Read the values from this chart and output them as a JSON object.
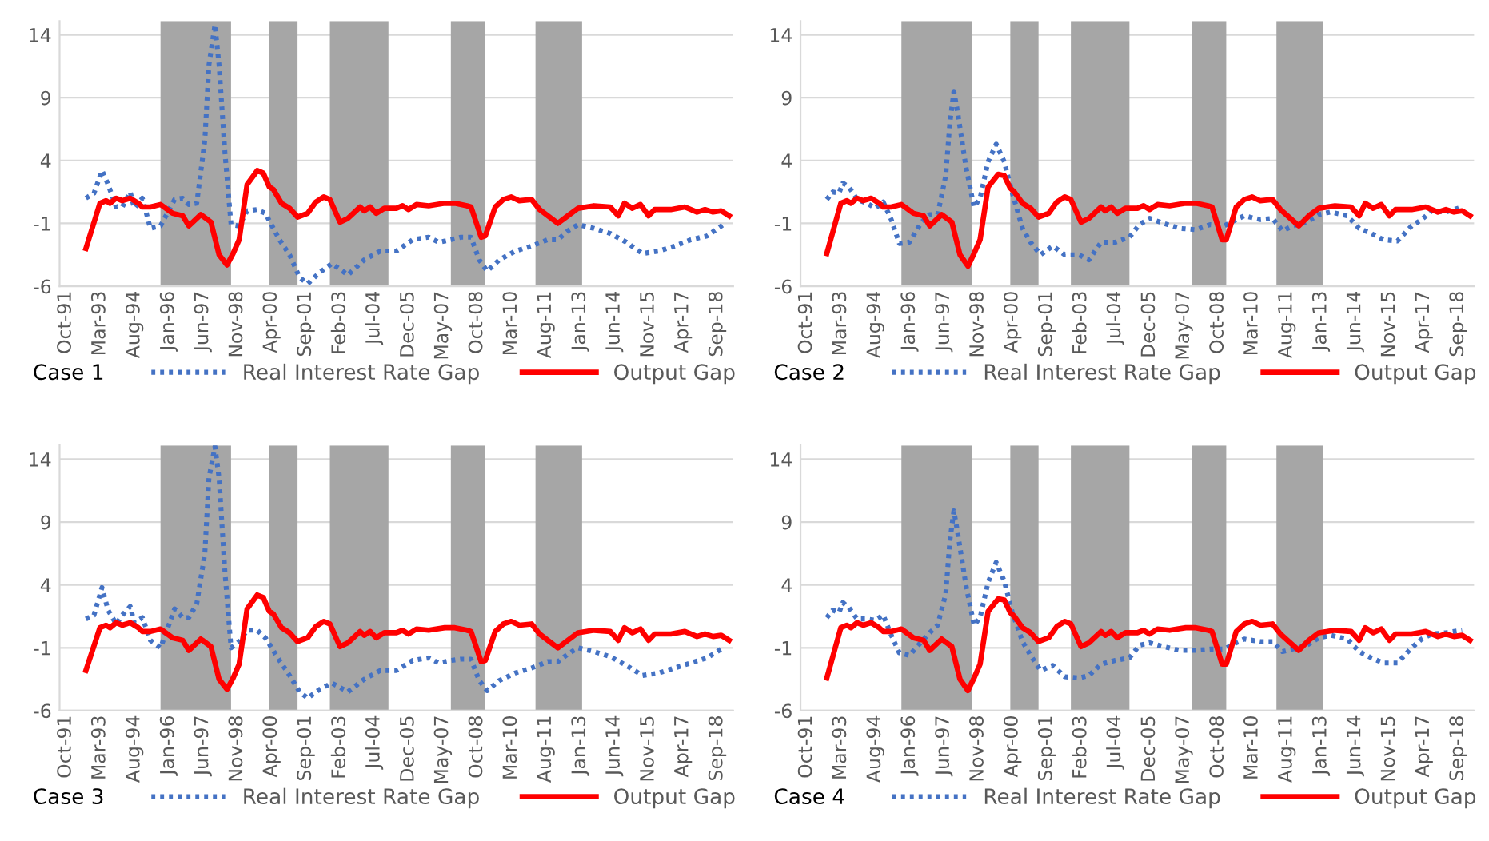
{
  "chart_data": [
    {
      "type": "line",
      "title": "Case 1",
      "ylim": [
        -6,
        15.1
      ],
      "yticks": [
        -6,
        -1,
        4,
        9,
        14
      ],
      "xlim": [
        "1991-07",
        "2019-05"
      ],
      "xticks": [
        {
          "value": "1991-10",
          "label": "Oct-91"
        },
        {
          "value": "1993-03",
          "label": "Mar-93"
        },
        {
          "value": "1994-08",
          "label": "Aug-94"
        },
        {
          "value": "1996-01",
          "label": "Jan-96"
        },
        {
          "value": "1997-06",
          "label": "Jun-97"
        },
        {
          "value": "1998-11",
          "label": "Nov-98"
        },
        {
          "value": "2000-04",
          "label": "Apr-00"
        },
        {
          "value": "2001-09",
          "label": "Sep-01"
        },
        {
          "value": "2003-02",
          "label": "Feb-03"
        },
        {
          "value": "2004-07",
          "label": "Jul-04"
        },
        {
          "value": "2005-12",
          "label": "Dec-05"
        },
        {
          "value": "2007-05",
          "label": "May-07"
        },
        {
          "value": "2008-10",
          "label": "Oct-08"
        },
        {
          "value": "2010-03",
          "label": "Mar-10"
        },
        {
          "value": "2011-08",
          "label": "Aug-11"
        },
        {
          "value": "2013-01",
          "label": "Jan-13"
        },
        {
          "value": "2014-06",
          "label": "Jun-14"
        },
        {
          "value": "2015-11",
          "label": "Nov-15"
        },
        {
          "value": "2017-04",
          "label": "Apr-17"
        },
        {
          "value": "2018-09",
          "label": "Sep-18"
        }
      ],
      "grid": "y",
      "legend": "bottom",
      "bands": [
        {
          "axis": "x",
          "from": "1995-09",
          "to": "1998-08",
          "color": "#a6a6a6"
        },
        {
          "axis": "x",
          "from": "2000-03",
          "to": "2001-05",
          "color": "#a6a6a6"
        },
        {
          "axis": "x",
          "from": "2002-09",
          "to": "2005-02",
          "color": "#a6a6a6"
        },
        {
          "axis": "x",
          "from": "2007-09",
          "to": "2009-02",
          "color": "#a6a6a6"
        },
        {
          "axis": "x",
          "from": "2011-03",
          "to": "2013-02",
          "color": "#a6a6a6"
        }
      ],
      "series": [
        {
          "name": "Real Interest Rate Gap",
          "type": "line",
          "color": "#4472c4",
          "line_style": "dotted",
          "x": [
            "1992-08",
            "1992-12",
            "1993-04",
            "1993-07",
            "1993-11",
            "1994-02",
            "1994-06",
            "1994-08",
            "1994-12",
            "1995-04",
            "1995-09",
            "1996-04",
            "1996-08",
            "1996-11",
            "1997-03",
            "1997-07",
            "1997-09",
            "1997-12",
            "1998-02",
            "1998-05",
            "1998-08",
            "1998-12",
            "1999-04",
            "1999-09",
            "2000-01",
            "2000-08",
            "2001-01",
            "2001-06",
            "2001-10",
            "2002-04",
            "2002-10",
            "2003-06",
            "2004-02",
            "2004-10",
            "2005-06",
            "2006-02",
            "2006-10",
            "2007-03",
            "2007-09",
            "2008-02",
            "2008-07",
            "2008-11",
            "2009-03",
            "2009-09",
            "2010-05",
            "2011-01",
            "2011-09",
            "2012-02",
            "2012-07",
            "2012-12",
            "2013-08",
            "2014-04",
            "2014-12",
            "2015-08",
            "2016-04",
            "2016-12",
            "2017-08",
            "2018-04",
            "2018-12"
          ],
          "values": [
            1.0,
            1.4,
            3.2,
            2.1,
            0.3,
            0.3,
            1.5,
            0.2,
            1.0,
            -1.4,
            -1.2,
            0.9,
            1.0,
            0.5,
            0.6,
            5.6,
            11.6,
            14.8,
            11.6,
            4.6,
            -1.1,
            -1.2,
            0.0,
            0.1,
            -0.2,
            -2.3,
            -3.5,
            -5.3,
            -5.8,
            -4.9,
            -4.2,
            -5.1,
            -3.9,
            -3.2,
            -3.2,
            -2.3,
            -2.1,
            -2.5,
            -2.3,
            -2.1,
            -2.1,
            -3.9,
            -4.8,
            -3.9,
            -3.2,
            -2.8,
            -2.3,
            -2.3,
            -1.6,
            -1.1,
            -1.4,
            -1.8,
            -2.5,
            -3.4,
            -3.2,
            -2.8,
            -2.3,
            -2.0,
            -1.1
          ]
        },
        {
          "name": "Output Gap",
          "type": "line",
          "color": "#ff0000",
          "line_style": "solid",
          "x": [
            "1992-08",
            "1993-03",
            "1993-06",
            "1993-08",
            "1993-11",
            "1994-02",
            "1994-06",
            "1994-10",
            "1994-12",
            "1995-04",
            "1995-09",
            "1996-03",
            "1996-08",
            "1996-11",
            "1997-05",
            "1997-10",
            "1998-02",
            "1998-06",
            "1998-09",
            "1998-12",
            "1999-04",
            "1999-09",
            "1999-12",
            "2000-03",
            "2000-05",
            "2000-09",
            "2001-01",
            "2001-05",
            "2001-10",
            "2002-02",
            "2002-06",
            "2002-09",
            "2003-02",
            "2003-06",
            "2003-12",
            "2004-02",
            "2004-05",
            "2004-08",
            "2004-12",
            "2005-06",
            "2005-09",
            "2005-12",
            "2006-04",
            "2006-10",
            "2007-06",
            "2007-11",
            "2008-05",
            "2008-07",
            "2008-12",
            "2009-02",
            "2009-07",
            "2009-11",
            "2010-03",
            "2010-07",
            "2011-01",
            "2011-05",
            "2012-02",
            "2012-07",
            "2012-12",
            "2013-08",
            "2014-04",
            "2014-08",
            "2014-11",
            "2015-03",
            "2015-07",
            "2015-11",
            "2016-02",
            "2016-10",
            "2017-05",
            "2017-11",
            "2018-03",
            "2018-07",
            "2018-11",
            "2019-03"
          ],
          "values": [
            -3.0,
            0.6,
            0.8,
            0.6,
            1.0,
            0.8,
            1.0,
            0.6,
            0.3,
            0.3,
            0.5,
            -0.2,
            -0.4,
            -1.2,
            -0.3,
            -0.9,
            -3.5,
            -4.3,
            -3.4,
            -2.3,
            2.1,
            3.2,
            3.0,
            1.9,
            1.7,
            0.6,
            0.2,
            -0.5,
            -0.2,
            0.7,
            1.1,
            0.9,
            -0.9,
            -0.6,
            0.3,
            0.0,
            0.3,
            -0.2,
            0.2,
            0.2,
            0.4,
            0.1,
            0.5,
            0.4,
            0.6,
            0.6,
            0.4,
            0.3,
            -2.1,
            -2.0,
            0.3,
            0.9,
            1.1,
            0.8,
            0.9,
            0.1,
            -1.0,
            -0.4,
            0.2,
            0.4,
            0.3,
            -0.4,
            0.6,
            0.2,
            0.5,
            -0.4,
            0.1,
            0.1,
            0.3,
            -0.1,
            0.1,
            -0.1,
            0.0,
            -0.4
          ]
        }
      ]
    },
    {
      "type": "line",
      "title": "Case 2",
      "ylim": [
        -6,
        15.1
      ],
      "yticks": [
        -6,
        -1,
        4,
        9,
        14
      ],
      "xlim": [
        "1991-07",
        "2019-05"
      ],
      "xticks": [
        {
          "value": "1991-10",
          "label": "Oct-91"
        },
        {
          "value": "1993-03",
          "label": "Mar-93"
        },
        {
          "value": "1994-08",
          "label": "Aug-94"
        },
        {
          "value": "1996-01",
          "label": "Jan-96"
        },
        {
          "value": "1997-06",
          "label": "Jun-97"
        },
        {
          "value": "1998-11",
          "label": "Nov-98"
        },
        {
          "value": "2000-04",
          "label": "Apr-00"
        },
        {
          "value": "2001-09",
          "label": "Sep-01"
        },
        {
          "value": "2003-02",
          "label": "Feb-03"
        },
        {
          "value": "2004-07",
          "label": "Jul-04"
        },
        {
          "value": "2005-12",
          "label": "Dec-05"
        },
        {
          "value": "2007-05",
          "label": "May-07"
        },
        {
          "value": "2008-10",
          "label": "Oct-08"
        },
        {
          "value": "2010-03",
          "label": "Mar-10"
        },
        {
          "value": "2011-08",
          "label": "Aug-11"
        },
        {
          "value": "2013-01",
          "label": "Jan-13"
        },
        {
          "value": "2014-06",
          "label": "Jun-14"
        },
        {
          "value": "2015-11",
          "label": "Nov-15"
        },
        {
          "value": "2017-04",
          "label": "Apr-17"
        },
        {
          "value": "2018-09",
          "label": "Sep-18"
        }
      ],
      "grid": "y",
      "legend": "bottom",
      "bands": [
        {
          "axis": "x",
          "from": "1995-09",
          "to": "1998-08",
          "color": "#a6a6a6"
        },
        {
          "axis": "x",
          "from": "2000-03",
          "to": "2001-05",
          "color": "#a6a6a6"
        },
        {
          "axis": "x",
          "from": "2002-09",
          "to": "2005-02",
          "color": "#a6a6a6"
        },
        {
          "axis": "x",
          "from": "2007-09",
          "to": "2009-02",
          "color": "#a6a6a6"
        },
        {
          "axis": "x",
          "from": "2011-03",
          "to": "2013-02",
          "color": "#a6a6a6"
        }
      ],
      "series": [
        {
          "name": "Real Interest Rate Gap",
          "type": "line",
          "color": "#4472c4",
          "line_style": "dotted",
          "x": [
            "1992-08",
            "1992-11",
            "1993-02",
            "1993-04",
            "1993-07",
            "1993-11",
            "1994-04",
            "1994-08",
            "1994-12",
            "1995-04",
            "1995-08",
            "1996-01",
            "1996-07",
            "1996-11",
            "1997-03",
            "1997-07",
            "1997-09",
            "1997-11",
            "1998-01",
            "1998-05",
            "1998-09",
            "1998-12",
            "1999-04",
            "1999-08",
            "1999-12",
            "2000-04",
            "2000-09",
            "2001-01",
            "2001-06",
            "2001-12",
            "2002-06",
            "2003-01",
            "2003-06",
            "2003-12",
            "2004-07",
            "2005-02",
            "2005-07",
            "2005-12",
            "2006-07",
            "2007-03",
            "2007-11",
            "2008-06",
            "2009-01",
            "2009-07",
            "2009-11",
            "2010-07",
            "2011-01",
            "2011-06",
            "2011-11",
            "2012-06",
            "2012-12",
            "2013-06",
            "2014-02",
            "2014-08",
            "2015-02",
            "2015-08",
            "2016-03",
            "2016-10",
            "2017-03",
            "2017-08",
            "2018-03",
            "2018-11"
          ],
          "values": [
            0.9,
            1.5,
            1.4,
            2.2,
            1.9,
            0.9,
            0.6,
            0.2,
            0.7,
            -0.7,
            -2.6,
            -2.5,
            -0.9,
            -0.3,
            -0.3,
            2.8,
            7.0,
            9.5,
            7.7,
            3.5,
            0.3,
            1.0,
            3.9,
            5.3,
            3.9,
            1.4,
            -1.4,
            -2.5,
            -3.5,
            -2.8,
            -3.5,
            -3.5,
            -3.9,
            -2.5,
            -2.5,
            -2.1,
            -1.1,
            -0.6,
            -1.0,
            -1.4,
            -1.5,
            -1.1,
            -1.2,
            -0.7,
            -0.4,
            -0.7,
            -0.6,
            -1.6,
            -1.2,
            -0.9,
            -0.3,
            -0.1,
            -0.4,
            -1.4,
            -1.8,
            -2.3,
            -2.4,
            -1.2,
            -0.7,
            0.0,
            -0.1,
            0.3
          ]
        },
        {
          "name": "Output Gap",
          "type": "line",
          "color": "#ff0000",
          "line_style": "solid",
          "x": [
            "1992-08",
            "1993-03",
            "1993-06",
            "1993-08",
            "1993-11",
            "1994-02",
            "1994-06",
            "1994-10",
            "1994-12",
            "1995-04",
            "1995-09",
            "1996-03",
            "1996-08",
            "1996-11",
            "1997-05",
            "1997-10",
            "1998-02",
            "1998-06",
            "1998-09",
            "1998-12",
            "1999-04",
            "1999-09",
            "1999-12",
            "2000-03",
            "2000-05",
            "2000-09",
            "2001-01",
            "2001-05",
            "2001-10",
            "2002-02",
            "2002-06",
            "2002-09",
            "2003-02",
            "2003-06",
            "2003-12",
            "2004-02",
            "2004-05",
            "2004-08",
            "2004-12",
            "2005-06",
            "2005-09",
            "2005-12",
            "2006-04",
            "2006-10",
            "2007-06",
            "2007-11",
            "2008-05",
            "2008-07",
            "2008-12",
            "2009-02",
            "2009-07",
            "2009-11",
            "2010-03",
            "2010-07",
            "2011-01",
            "2011-05",
            "2012-02",
            "2012-07",
            "2012-12",
            "2013-08",
            "2014-04",
            "2014-08",
            "2014-11",
            "2015-03",
            "2015-07",
            "2015-11",
            "2016-02",
            "2016-10",
            "2017-05",
            "2017-11",
            "2018-03",
            "2018-07",
            "2018-11",
            "2019-03"
          ],
          "values": [
            -3.4,
            0.6,
            0.8,
            0.6,
            1.0,
            0.8,
            1.0,
            0.6,
            0.3,
            0.3,
            0.5,
            -0.2,
            -0.4,
            -1.2,
            -0.3,
            -0.9,
            -3.5,
            -4.4,
            -3.4,
            -2.3,
            1.9,
            2.9,
            2.8,
            1.8,
            1.5,
            0.6,
            0.2,
            -0.5,
            -0.2,
            0.7,
            1.1,
            0.9,
            -0.9,
            -0.6,
            0.3,
            0.0,
            0.3,
            -0.2,
            0.2,
            0.2,
            0.4,
            0.1,
            0.5,
            0.4,
            0.6,
            0.6,
            0.4,
            0.3,
            -2.3,
            -2.3,
            0.3,
            0.9,
            1.1,
            0.8,
            0.9,
            0.1,
            -1.2,
            -0.4,
            0.2,
            0.4,
            0.3,
            -0.4,
            0.6,
            0.2,
            0.5,
            -0.4,
            0.1,
            0.1,
            0.3,
            -0.1,
            0.1,
            -0.1,
            0.0,
            -0.4
          ]
        }
      ]
    },
    {
      "type": "line",
      "title": "Case 3",
      "ylim": [
        -6,
        15.1
      ],
      "yticks": [
        -6,
        -1,
        4,
        9,
        14
      ],
      "xlim": [
        "1991-07",
        "2019-05"
      ],
      "xticks": [
        {
          "value": "1991-10",
          "label": "Oct-91"
        },
        {
          "value": "1993-03",
          "label": "Mar-93"
        },
        {
          "value": "1994-08",
          "label": "Aug-94"
        },
        {
          "value": "1996-01",
          "label": "Jan-96"
        },
        {
          "value": "1997-06",
          "label": "Jun-97"
        },
        {
          "value": "1998-11",
          "label": "Nov-98"
        },
        {
          "value": "2000-04",
          "label": "Apr-00"
        },
        {
          "value": "2001-09",
          "label": "Sep-01"
        },
        {
          "value": "2003-02",
          "label": "Feb-03"
        },
        {
          "value": "2004-07",
          "label": "Jul-04"
        },
        {
          "value": "2005-12",
          "label": "Dec-05"
        },
        {
          "value": "2007-05",
          "label": "May-07"
        },
        {
          "value": "2008-10",
          "label": "Oct-08"
        },
        {
          "value": "2010-03",
          "label": "Mar-10"
        },
        {
          "value": "2011-08",
          "label": "Aug-11"
        },
        {
          "value": "2013-01",
          "label": "Jan-13"
        },
        {
          "value": "2014-06",
          "label": "Jun-14"
        },
        {
          "value": "2015-11",
          "label": "Nov-15"
        },
        {
          "value": "2017-04",
          "label": "Apr-17"
        },
        {
          "value": "2018-09",
          "label": "Sep-18"
        }
      ],
      "grid": "y",
      "legend": "bottom",
      "bands": [
        {
          "axis": "x",
          "from": "1995-09",
          "to": "1998-08",
          "color": "#a6a6a6"
        },
        {
          "axis": "x",
          "from": "2000-03",
          "to": "2001-05",
          "color": "#a6a6a6"
        },
        {
          "axis": "x",
          "from": "2002-09",
          "to": "2005-02",
          "color": "#a6a6a6"
        },
        {
          "axis": "x",
          "from": "2007-09",
          "to": "2009-02",
          "color": "#a6a6a6"
        },
        {
          "axis": "x",
          "from": "2011-03",
          "to": "2013-02",
          "color": "#a6a6a6"
        }
      ],
      "series": [
        {
          "name": "Real Interest Rate Gap",
          "type": "line",
          "color": "#4472c4",
          "line_style": "dotted",
          "x": [
            "1992-08",
            "1992-12",
            "1993-04",
            "1993-07",
            "1993-11",
            "1994-02",
            "1994-06",
            "1994-08",
            "1994-12",
            "1995-04",
            "1995-09",
            "1996-04",
            "1996-08",
            "1996-11",
            "1997-03",
            "1997-07",
            "1997-09",
            "1997-12",
            "1998-02",
            "1998-05",
            "1998-08",
            "1998-12",
            "1999-04",
            "1999-09",
            "2000-01",
            "2000-08",
            "2001-01",
            "2001-06",
            "2001-10",
            "2002-04",
            "2002-10",
            "2003-06",
            "2004-02",
            "2004-10",
            "2005-06",
            "2006-02",
            "2006-10",
            "2007-03",
            "2007-09",
            "2008-02",
            "2008-07",
            "2008-11",
            "2009-03",
            "2009-09",
            "2010-05",
            "2011-01",
            "2011-09",
            "2012-02",
            "2012-07",
            "2012-12",
            "2013-08",
            "2014-04",
            "2014-12",
            "2015-08",
            "2016-04",
            "2016-12",
            "2017-08",
            "2018-04",
            "2018-12"
          ],
          "values": [
            1.3,
            1.6,
            3.8,
            2.0,
            0.9,
            1.6,
            2.3,
            1.0,
            1.4,
            -0.4,
            -1.0,
            2.1,
            1.4,
            1.4,
            2.5,
            6.5,
            12.5,
            15.0,
            12.5,
            5.0,
            -1.0,
            -0.5,
            0.4,
            0.4,
            -0.2,
            -2.0,
            -3.2,
            -4.5,
            -5.0,
            -4.3,
            -3.8,
            -4.5,
            -3.5,
            -2.8,
            -2.8,
            -2.0,
            -1.8,
            -2.2,
            -2.0,
            -1.9,
            -1.9,
            -3.6,
            -4.4,
            -3.6,
            -3.0,
            -2.6,
            -2.1,
            -2.1,
            -1.5,
            -1.0,
            -1.3,
            -1.7,
            -2.4,
            -3.2,
            -3.0,
            -2.6,
            -2.2,
            -1.8,
            -1.0
          ]
        },
        {
          "name": "Output Gap",
          "type": "line",
          "color": "#ff0000",
          "line_style": "solid",
          "x": [
            "1992-08",
            "1993-03",
            "1993-06",
            "1993-08",
            "1993-11",
            "1994-02",
            "1994-06",
            "1994-10",
            "1994-12",
            "1995-04",
            "1995-09",
            "1996-03",
            "1996-08",
            "1996-11",
            "1997-05",
            "1997-10",
            "1998-02",
            "1998-06",
            "1998-09",
            "1998-12",
            "1999-04",
            "1999-09",
            "1999-12",
            "2000-03",
            "2000-05",
            "2000-09",
            "2001-01",
            "2001-05",
            "2001-10",
            "2002-02",
            "2002-06",
            "2002-09",
            "2003-02",
            "2003-06",
            "2003-12",
            "2004-02",
            "2004-05",
            "2004-08",
            "2004-12",
            "2005-06",
            "2005-09",
            "2005-12",
            "2006-04",
            "2006-10",
            "2007-06",
            "2007-11",
            "2008-05",
            "2008-07",
            "2008-12",
            "2009-02",
            "2009-07",
            "2009-11",
            "2010-03",
            "2010-07",
            "2011-01",
            "2011-05",
            "2012-02",
            "2012-07",
            "2012-12",
            "2013-08",
            "2014-04",
            "2014-08",
            "2014-11",
            "2015-03",
            "2015-07",
            "2015-11",
            "2016-02",
            "2016-10",
            "2017-05",
            "2017-11",
            "2018-03",
            "2018-07",
            "2018-11",
            "2019-03"
          ],
          "values": [
            -2.8,
            0.6,
            0.8,
            0.6,
            1.0,
            0.8,
            1.0,
            0.6,
            0.3,
            0.3,
            0.5,
            -0.2,
            -0.4,
            -1.2,
            -0.3,
            -0.9,
            -3.5,
            -4.3,
            -3.4,
            -2.3,
            2.1,
            3.2,
            3.0,
            1.9,
            1.7,
            0.6,
            0.2,
            -0.5,
            -0.2,
            0.7,
            1.1,
            0.9,
            -0.9,
            -0.6,
            0.3,
            0.0,
            0.3,
            -0.2,
            0.2,
            0.2,
            0.4,
            0.1,
            0.5,
            0.4,
            0.6,
            0.6,
            0.4,
            0.3,
            -2.1,
            -2.0,
            0.3,
            0.9,
            1.1,
            0.8,
            0.9,
            0.1,
            -1.0,
            -0.4,
            0.2,
            0.4,
            0.3,
            -0.4,
            0.6,
            0.2,
            0.5,
            -0.4,
            0.1,
            0.1,
            0.3,
            -0.1,
            0.1,
            -0.1,
            0.0,
            -0.4
          ]
        }
      ]
    },
    {
      "type": "line",
      "title": "Case 4",
      "ylim": [
        -6,
        15.1
      ],
      "yticks": [
        -6,
        -1,
        4,
        9,
        14
      ],
      "xlim": [
        "1991-07",
        "2019-05"
      ],
      "xticks": [
        {
          "value": "1991-10",
          "label": "Oct-91"
        },
        {
          "value": "1993-03",
          "label": "Mar-93"
        },
        {
          "value": "1994-08",
          "label": "Aug-94"
        },
        {
          "value": "1996-01",
          "label": "Jan-96"
        },
        {
          "value": "1997-06",
          "label": "Jun-97"
        },
        {
          "value": "1998-11",
          "label": "Nov-98"
        },
        {
          "value": "2000-04",
          "label": "Apr-00"
        },
        {
          "value": "2001-09",
          "label": "Sep-01"
        },
        {
          "value": "2003-02",
          "label": "Feb-03"
        },
        {
          "value": "2004-07",
          "label": "Jul-04"
        },
        {
          "value": "2005-12",
          "label": "Dec-05"
        },
        {
          "value": "2007-05",
          "label": "May-07"
        },
        {
          "value": "2008-10",
          "label": "Oct-08"
        },
        {
          "value": "2010-03",
          "label": "Mar-10"
        },
        {
          "value": "2011-08",
          "label": "Aug-11"
        },
        {
          "value": "2013-01",
          "label": "Jan-13"
        },
        {
          "value": "2014-06",
          "label": "Jun-14"
        },
        {
          "value": "2015-11",
          "label": "Nov-15"
        },
        {
          "value": "2017-04",
          "label": "Apr-17"
        },
        {
          "value": "2018-09",
          "label": "Sep-18"
        }
      ],
      "grid": "y",
      "legend": "bottom",
      "bands": [
        {
          "axis": "x",
          "from": "1995-09",
          "to": "1998-08",
          "color": "#a6a6a6"
        },
        {
          "axis": "x",
          "from": "2000-03",
          "to": "2001-05",
          "color": "#a6a6a6"
        },
        {
          "axis": "x",
          "from": "2002-09",
          "to": "2005-02",
          "color": "#a6a6a6"
        },
        {
          "axis": "x",
          "from": "2007-09",
          "to": "2009-02",
          "color": "#a6a6a6"
        },
        {
          "axis": "x",
          "from": "2011-03",
          "to": "2013-02",
          "color": "#a6a6a6"
        }
      ],
      "series": [
        {
          "name": "Real Interest Rate Gap",
          "type": "line",
          "color": "#4472c4",
          "line_style": "dotted",
          "x": [
            "1992-08",
            "1992-11",
            "1993-02",
            "1993-04",
            "1993-07",
            "1993-11",
            "1994-04",
            "1994-08",
            "1994-12",
            "1995-04",
            "1995-08",
            "1996-01",
            "1996-07",
            "1996-11",
            "1997-03",
            "1997-07",
            "1997-09",
            "1997-11",
            "1998-01",
            "1998-05",
            "1998-09",
            "1998-12",
            "1999-04",
            "1999-08",
            "1999-12",
            "2000-04",
            "2000-09",
            "2001-01",
            "2001-06",
            "2001-12",
            "2002-06",
            "2003-01",
            "2003-06",
            "2003-12",
            "2004-07",
            "2005-02",
            "2005-07",
            "2005-12",
            "2006-07",
            "2007-03",
            "2007-11",
            "2008-06",
            "2009-01",
            "2009-07",
            "2009-11",
            "2010-07",
            "2011-01",
            "2011-06",
            "2011-11",
            "2012-06",
            "2012-12",
            "2013-06",
            "2014-02",
            "2014-08",
            "2015-02",
            "2015-08",
            "2016-03",
            "2016-10",
            "2017-03",
            "2017-08",
            "2018-03",
            "2018-11"
          ],
          "values": [
            1.4,
            2.0,
            1.8,
            2.6,
            2.2,
            1.3,
            1.3,
            1.2,
            1.6,
            0.0,
            -1.4,
            -1.6,
            -0.5,
            0.2,
            0.8,
            3.3,
            7.5,
            9.9,
            8.0,
            4.0,
            0.8,
            1.4,
            4.2,
            5.8,
            4.3,
            1.8,
            -0.5,
            -1.6,
            -2.8,
            -2.4,
            -3.3,
            -3.4,
            -3.2,
            -2.3,
            -2.0,
            -1.8,
            -0.8,
            -0.6,
            -0.9,
            -1.2,
            -1.2,
            -1.1,
            -1.1,
            -0.6,
            -0.3,
            -0.5,
            -0.5,
            -1.3,
            -1.1,
            -0.8,
            -0.2,
            0.0,
            -0.3,
            -1.3,
            -1.8,
            -2.2,
            -2.2,
            -1.0,
            -0.3,
            0.1,
            0.2,
            0.4
          ]
        },
        {
          "name": "Output Gap",
          "type": "line",
          "color": "#ff0000",
          "line_style": "solid",
          "x": [
            "1992-08",
            "1993-03",
            "1993-06",
            "1993-08",
            "1993-11",
            "1994-02",
            "1994-06",
            "1994-10",
            "1994-12",
            "1995-04",
            "1995-09",
            "1996-03",
            "1996-08",
            "1996-11",
            "1997-05",
            "1997-10",
            "1998-02",
            "1998-06",
            "1998-09",
            "1998-12",
            "1999-04",
            "1999-09",
            "1999-12",
            "2000-03",
            "2000-05",
            "2000-09",
            "2001-01",
            "2001-05",
            "2001-10",
            "2002-02",
            "2002-06",
            "2002-09",
            "2003-02",
            "2003-06",
            "2003-12",
            "2004-02",
            "2004-05",
            "2004-08",
            "2004-12",
            "2005-06",
            "2005-09",
            "2005-12",
            "2006-04",
            "2006-10",
            "2007-06",
            "2007-11",
            "2008-05",
            "2008-07",
            "2008-12",
            "2009-02",
            "2009-07",
            "2009-11",
            "2010-03",
            "2010-07",
            "2011-01",
            "2011-05",
            "2012-02",
            "2012-07",
            "2012-12",
            "2013-08",
            "2014-04",
            "2014-08",
            "2014-11",
            "2015-03",
            "2015-07",
            "2015-11",
            "2016-02",
            "2016-10",
            "2017-05",
            "2017-11",
            "2018-03",
            "2018-07",
            "2018-11",
            "2019-03"
          ],
          "values": [
            -3.4,
            0.6,
            0.8,
            0.6,
            1.0,
            0.8,
            1.0,
            0.6,
            0.3,
            0.3,
            0.5,
            -0.2,
            -0.4,
            -1.2,
            -0.3,
            -0.9,
            -3.5,
            -4.4,
            -3.4,
            -2.3,
            1.9,
            2.9,
            2.8,
            1.8,
            1.5,
            0.6,
            0.2,
            -0.5,
            -0.2,
            0.7,
            1.1,
            0.9,
            -0.9,
            -0.6,
            0.3,
            0.0,
            0.3,
            -0.2,
            0.2,
            0.2,
            0.4,
            0.1,
            0.5,
            0.4,
            0.6,
            0.6,
            0.4,
            0.3,
            -2.3,
            -2.3,
            0.3,
            0.9,
            1.1,
            0.8,
            0.9,
            0.1,
            -1.2,
            -0.4,
            0.2,
            0.4,
            0.3,
            -0.4,
            0.6,
            0.2,
            0.5,
            -0.4,
            0.1,
            0.1,
            0.3,
            -0.1,
            0.1,
            -0.1,
            0.0,
            -0.4
          ]
        }
      ]
    }
  ]
}
